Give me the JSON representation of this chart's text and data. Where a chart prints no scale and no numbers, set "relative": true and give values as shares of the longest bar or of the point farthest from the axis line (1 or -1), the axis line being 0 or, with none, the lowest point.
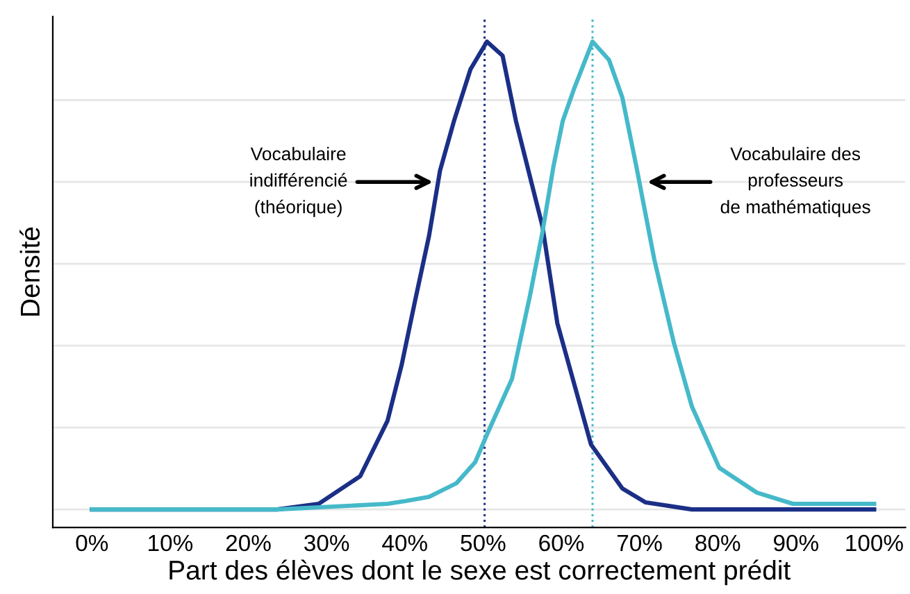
{
  "chart_data": {
    "type": "line",
    "relative": true,
    "xlabel": "Part des élèves dont le sexe est correctement prédit",
    "ylabel": "Densité",
    "xlim": [
      -5,
      104
    ],
    "xticks": [
      {
        "value": 0,
        "label": "0%"
      },
      {
        "value": 10,
        "label": "10%"
      },
      {
        "value": 20,
        "label": "20%"
      },
      {
        "value": 30,
        "label": "30%"
      },
      {
        "value": 40,
        "label": "40%"
      },
      {
        "value": 50,
        "label": "50%"
      },
      {
        "value": 60,
        "label": "60%"
      },
      {
        "value": 70,
        "label": "70%"
      },
      {
        "value": 80,
        "label": "80%"
      },
      {
        "value": 90,
        "label": "90%"
      },
      {
        "value": 100,
        "label": "100%"
      }
    ],
    "tick_labels": "x",
    "grid": "y",
    "line_style": "solid",
    "marker": "none",
    "series": [
      {
        "color": "#1b2f86",
        "x": [
          0,
          23.7,
          29.0,
          34.3,
          37.8,
          39.6,
          41.3,
          43.1,
          44.5,
          46.3,
          48.4,
          50.5,
          52.5,
          54.2,
          57.6,
          59.5,
          63.8,
          67.8,
          70.8,
          76.7,
          100
        ],
        "values": [
          0,
          0,
          0.012,
          0.071,
          0.19,
          0.309,
          0.445,
          0.585,
          0.724,
          0.831,
          0.941,
          1.0,
          0.97,
          0.831,
          0.605,
          0.398,
          0.139,
          0.045,
          0.015,
          0,
          0
        ]
      },
      {
        "color": "#45b9c9",
        "x": [
          0,
          23.7,
          37.8,
          40.1,
          43.1,
          46.6,
          49.0,
          50.5,
          53.7,
          56.0,
          57.6,
          59.0,
          60.2,
          61.7,
          64.0,
          66.1,
          67.8,
          69.6,
          71.9,
          74.4,
          76.7,
          80.2,
          85.0,
          89.6,
          100
        ],
        "values": [
          0,
          0,
          0.012,
          0.018,
          0.027,
          0.056,
          0.101,
          0.16,
          0.279,
          0.457,
          0.593,
          0.733,
          0.831,
          0.902,
          1.0,
          0.961,
          0.881,
          0.733,
          0.534,
          0.356,
          0.22,
          0.089,
          0.036,
          0.012,
          0.012
        ]
      }
    ],
    "ref_lines": [
      {
        "axis": "x",
        "value": 50.2,
        "color": "#1b2f86",
        "line_style": "dotted"
      },
      {
        "axis": "x",
        "value": 64.0,
        "color": "#45b9c9",
        "line_style": "dotted"
      }
    ],
    "annotations": [
      {
        "text": "Vocabulaire\nindifférencié\n(théorique)",
        "x": 43.6,
        "y": 0.7
      },
      {
        "text": "Vocabulaire des\nprofesseurs\nde mathématiques",
        "x": 71.0,
        "y": 0.7
      }
    ]
  }
}
